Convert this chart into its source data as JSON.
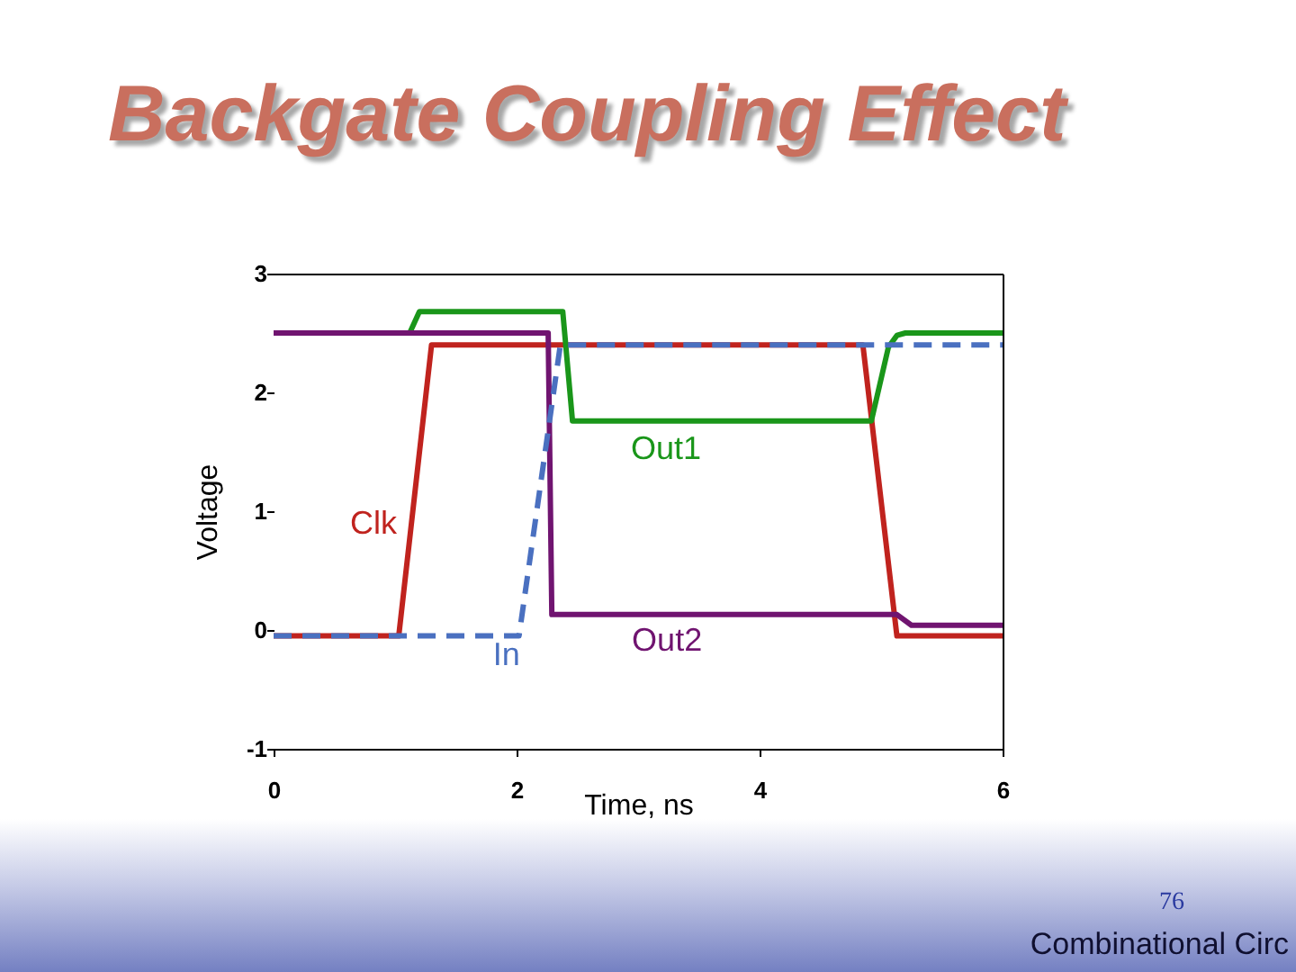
{
  "chart_data": {
    "type": "line",
    "title": "Backgate Coupling Effect",
    "xlabel": "Time, ns",
    "ylabel": "Voltage",
    "xlim": [
      0,
      6
    ],
    "ylim": [
      -1,
      3
    ],
    "xticks": [
      0,
      2,
      4,
      6
    ],
    "yticks": [
      -1,
      0,
      1,
      2,
      3
    ],
    "series": [
      {
        "name": "Clk",
        "color": "#c0231e",
        "x": [
          0,
          1.03,
          1.3,
          4.85,
          5.13,
          6
        ],
        "values": [
          -0.05,
          -0.05,
          2.4,
          2.4,
          -0.05,
          -0.05
        ]
      },
      {
        "name": "Out1",
        "color": "#1a961a",
        "x": [
          1.12,
          1.2,
          2.38,
          2.46,
          4.92,
          5.06,
          5.13,
          5.2,
          6
        ],
        "values": [
          2.5,
          2.68,
          2.68,
          1.76,
          1.76,
          2.38,
          2.48,
          2.5,
          2.5
        ]
      },
      {
        "name": "Out2",
        "color": "#701470",
        "x": [
          0,
          2.26,
          2.29,
          5.13,
          5.25,
          6
        ],
        "values": [
          2.5,
          2.5,
          0.13,
          0.13,
          0.04,
          0.04
        ]
      },
      {
        "name": "In",
        "color": "#4a70c0",
        "line_style": "dashed",
        "x": [
          0,
          2.02,
          2.36,
          6
        ],
        "values": [
          -0.05,
          -0.05,
          2.4,
          2.4
        ]
      }
    ],
    "annotations": [
      "76",
      "Combinational Circ"
    ]
  }
}
